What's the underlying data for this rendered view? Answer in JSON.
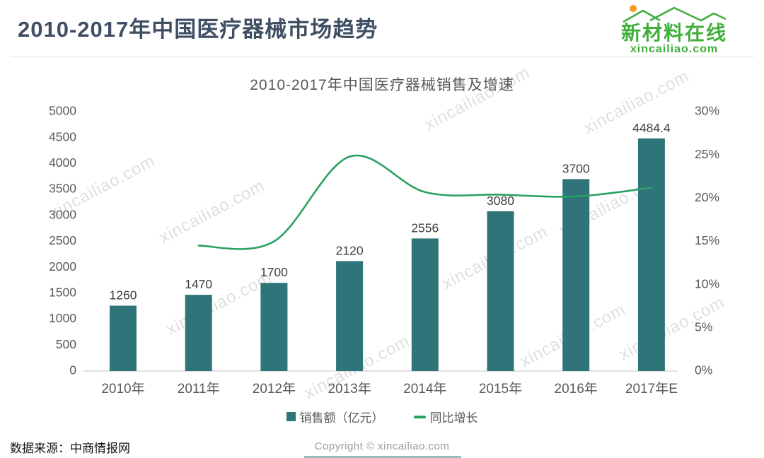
{
  "page": {
    "title": "2010-2017年中国医疗器械市场趋势",
    "logo": {
      "name": "新材料在线",
      "domain": "xincailiao.com"
    },
    "footer": {
      "source": "数据来源：中商情报网",
      "copyright": "Copyright © xincailiao.com"
    },
    "watermark_text": "xincailiao.com"
  },
  "colors": {
    "bar": "#2F7478",
    "line": "#2AA061",
    "logo_green": "#3FAE3A",
    "sun_orange": "#F59A23",
    "title_dark": "#3F4E63",
    "axis_text": "#595959",
    "bar_label": "#3D3D3D",
    "axis_line": "#D9D9D9"
  },
  "chart_data": {
    "type": "bar",
    "subtype": "bar-with-line-overlay",
    "title": "2010-2017年中国医疗器械销售及增速",
    "categories": [
      "2010年",
      "2011年",
      "2012年",
      "2013年",
      "2014年",
      "2015年",
      "2016年",
      "2017年E"
    ],
    "series": [
      {
        "name": "销售额（亿元）",
        "type": "bar",
        "axis": "left",
        "values": [
          1260,
          1470,
          1700,
          2120,
          2556,
          3080,
          3700,
          4484.4
        ],
        "labels": [
          "1260",
          "1470",
          "1700",
          "2120",
          "2556",
          "3080",
          "3700",
          "4484.4"
        ]
      },
      {
        "name": "同比增长",
        "type": "line",
        "axis": "right",
        "values": [
          null,
          14.5,
          15.0,
          24.8,
          20.7,
          20.4,
          20.2,
          21.2
        ]
      }
    ],
    "left_axis": {
      "min": 0,
      "max": 5000,
      "step": 500,
      "ticks": [
        "5000",
        "4500",
        "4000",
        "3500",
        "3000",
        "2500",
        "2000",
        "1500",
        "1000",
        "500",
        "0"
      ]
    },
    "right_axis": {
      "min": 0,
      "max": 30,
      "step": 5,
      "ticks": [
        "30%",
        "25%",
        "20%",
        "15%",
        "10%",
        "5%",
        "0%"
      ]
    },
    "legend_position": "bottom",
    "grid": false
  }
}
